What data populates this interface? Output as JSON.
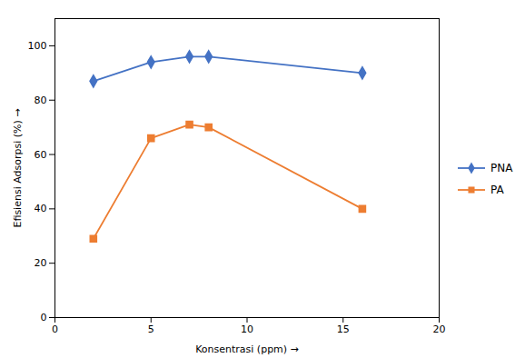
{
  "chart_data": {
    "type": "line",
    "x": [
      2,
      5,
      7,
      8,
      16
    ],
    "series": [
      {
        "name": "PNA",
        "color": "#4472C4",
        "marker": "diamond",
        "values": [
          87,
          94,
          96,
          96,
          90
        ]
      },
      {
        "name": "PA",
        "color": "#ED7D31",
        "marker": "square",
        "values": [
          29,
          66,
          71,
          70,
          40
        ]
      }
    ],
    "xlabel": "Konsentrasi (ppm)",
    "ylabel": "Efisiensi Adsorpsi (%)",
    "xlim": [
      0,
      20
    ],
    "ylim": [
      0,
      110
    ],
    "xticks": [
      0,
      5,
      10,
      15,
      20
    ],
    "yticks": [
      0,
      20,
      40,
      60,
      80,
      100
    ],
    "grid": false,
    "legend": "right"
  }
}
